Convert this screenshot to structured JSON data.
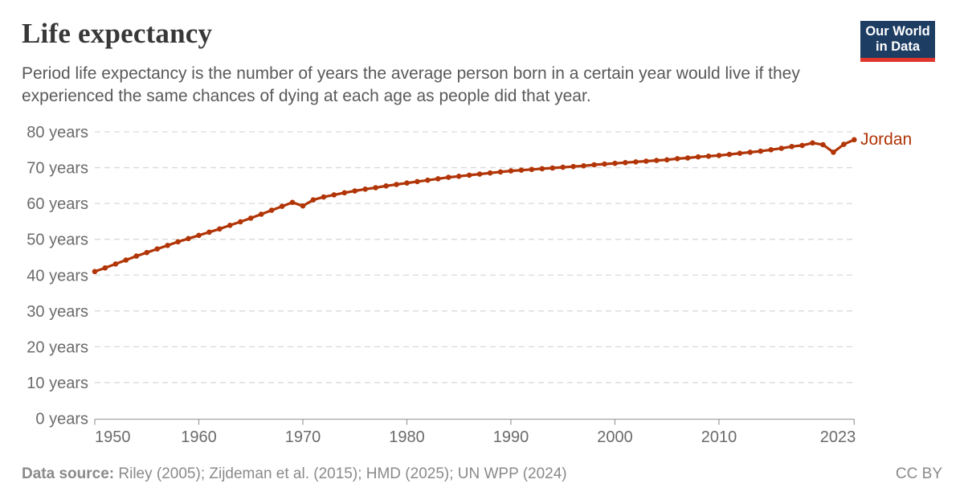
{
  "header": {
    "title": "Life expectancy",
    "subtitle": "Period life expectancy is the number of years the average person born in a certain year would live if they experienced the same chances of dying at each age as people did that year.",
    "logo": {
      "line1": "Our World",
      "line2": "in Data"
    }
  },
  "footer": {
    "source_label": "Data source:",
    "sources": " Riley (2005); Zijdeman et al. (2015); HMD (2025); UN WPP (2024)",
    "license": "CC BY"
  },
  "colors": {
    "series": "#b13507",
    "grid": "#d9d9d9",
    "axis": "#a3a3a3",
    "tick_text": "#6b6b6b",
    "logo_bg": "#1d3d63",
    "logo_red": "#e0362e"
  },
  "chart_data": {
    "type": "line",
    "title": "Life expectancy",
    "entity": "Jordan",
    "xlabel": "",
    "ylabel": "",
    "xlim": [
      1950,
      2023
    ],
    "ylim": [
      0,
      80
    ],
    "grid": "horizontal-dashed",
    "legend_position": "end-of-line-label",
    "xticks": [
      1950,
      1960,
      1970,
      1980,
      1990,
      2000,
      2010,
      2023
    ],
    "yticks": [
      0,
      10,
      20,
      30,
      40,
      50,
      60,
      70,
      80
    ],
    "ytick_suffix": " years",
    "x": [
      1950,
      1951,
      1952,
      1953,
      1954,
      1955,
      1956,
      1957,
      1958,
      1959,
      1960,
      1961,
      1962,
      1963,
      1964,
      1965,
      1966,
      1967,
      1968,
      1969,
      1970,
      1971,
      1972,
      1973,
      1974,
      1975,
      1976,
      1977,
      1978,
      1979,
      1980,
      1981,
      1982,
      1983,
      1984,
      1985,
      1986,
      1987,
      1988,
      1989,
      1990,
      1991,
      1992,
      1993,
      1994,
      1995,
      1996,
      1997,
      1998,
      1999,
      2000,
      2001,
      2002,
      2003,
      2004,
      2005,
      2006,
      2007,
      2008,
      2009,
      2010,
      2011,
      2012,
      2013,
      2014,
      2015,
      2016,
      2017,
      2018,
      2019,
      2020,
      2021,
      2022,
      2023
    ],
    "series": [
      {
        "name": "Jordan",
        "color": "#b13507",
        "values": [
          41.0,
          42.0,
          43.1,
          44.2,
          45.3,
          46.3,
          47.3,
          48.3,
          49.3,
          50.2,
          51.1,
          52.0,
          52.9,
          53.9,
          54.9,
          55.9,
          57.0,
          58.1,
          59.2,
          60.3,
          59.3,
          61.0,
          61.8,
          62.4,
          63.0,
          63.5,
          64.0,
          64.4,
          64.9,
          65.3,
          65.7,
          66.1,
          66.5,
          66.9,
          67.3,
          67.6,
          67.9,
          68.2,
          68.5,
          68.8,
          69.1,
          69.3,
          69.5,
          69.7,
          69.9,
          70.1,
          70.3,
          70.5,
          70.8,
          71.0,
          71.2,
          71.4,
          71.6,
          71.8,
          72.0,
          72.2,
          72.5,
          72.7,
          73.0,
          73.2,
          73.4,
          73.7,
          74.0,
          74.3,
          74.6,
          75.0,
          75.4,
          75.9,
          76.2,
          76.9,
          76.4,
          74.3,
          76.5,
          77.8
        ]
      }
    ]
  }
}
